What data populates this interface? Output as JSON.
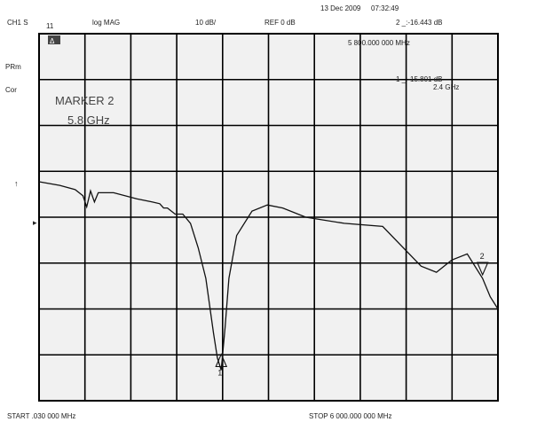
{
  "header": {
    "date": "13 Dec 2009",
    "time": "07:32:49",
    "channel": "CH1 S",
    "param": "11",
    "format": "log MAG",
    "scale": "10 dB/",
    "ref": "REF 0 dB",
    "marker_readout": "2 _:-16.443 dB",
    "marker_freq": "5 800.000 000 MHz"
  },
  "side_labels": {
    "prm": "PRm",
    "cor": "Cor",
    "arrow": "↑",
    "ref_pointer": "▸"
  },
  "status_badge": "Δ",
  "marker1": {
    "readout": "1 _:-15.801 dB",
    "freq": "2.4 GHz"
  },
  "marker2_annotation": {
    "title": "MARKER 2",
    "freq": "5.8 GHz"
  },
  "footer": {
    "start": "START    .030 000 MHz",
    "stop": "STOP 6 000.000 000 MHz"
  },
  "chart_data": {
    "type": "line",
    "title": "",
    "xlabel": "",
    "ylabel": "",
    "x_unit": "GHz",
    "y_unit": "dB",
    "xlim": [
      0.03,
      6.0
    ],
    "ylim": [
      -60,
      0
    ],
    "grid": true,
    "series": [
      {
        "x": [
          0.03,
          0.3,
          0.5,
          0.6,
          0.65,
          0.7,
          0.75,
          0.8,
          1.0,
          1.3,
          1.5,
          1.6,
          1.65,
          1.7,
          1.8,
          1.9,
          2.0,
          2.1,
          2.2,
          2.3,
          2.35,
          2.4,
          2.45,
          2.5,
          2.6,
          2.8,
          3.0,
          3.2,
          3.5,
          4.0,
          4.5,
          5.0,
          5.2,
          5.4,
          5.6,
          5.8,
          5.9,
          6.0
        ],
        "y": [
          -24.2,
          -24.8,
          -25.5,
          -26.5,
          -28.3,
          -25.7,
          -27.5,
          -26.0,
          -26.0,
          -27.0,
          -27.5,
          -27.8,
          -28.5,
          -28.5,
          -29.5,
          -29.5,
          -31.0,
          -35.0,
          -40.0,
          -49.0,
          -53.0,
          -55.0,
          -48.0,
          -40.0,
          -33.0,
          -29.0,
          -28.0,
          -28.5,
          -30.0,
          -31.0,
          -31.5,
          -38.0,
          -39.0,
          -37.0,
          -36.0,
          -40.0,
          -43.0,
          -45.0
        ],
        "color": "#111111"
      }
    ],
    "markers": [
      {
        "label": "1",
        "x": 2.4,
        "y": -15.801
      },
      {
        "label": "2",
        "x": 5.8,
        "y": -16.443
      }
    ]
  }
}
